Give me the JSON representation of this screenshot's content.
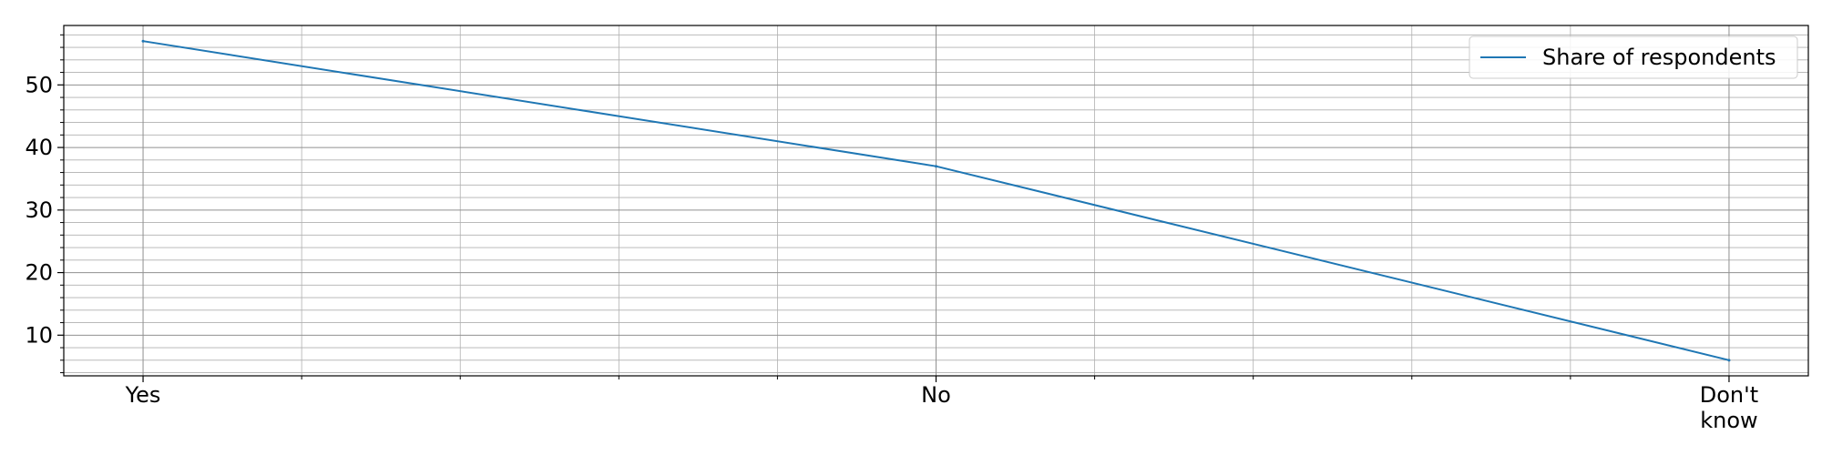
{
  "chart_data": {
    "type": "line",
    "categories": [
      "Yes",
      "No",
      "Don't know"
    ],
    "category_lines": [
      [
        "Yes"
      ],
      [
        "No"
      ],
      [
        "Don't",
        "know"
      ]
    ],
    "series": [
      {
        "name": "Share of respondents",
        "values": [
          57,
          37,
          6
        ],
        "color": "#1f77b4"
      }
    ],
    "ylim": [
      3.5,
      59.5
    ],
    "yticks": [
      10,
      20,
      30,
      40,
      50
    ],
    "grid": true,
    "legend_position": "top-right"
  }
}
